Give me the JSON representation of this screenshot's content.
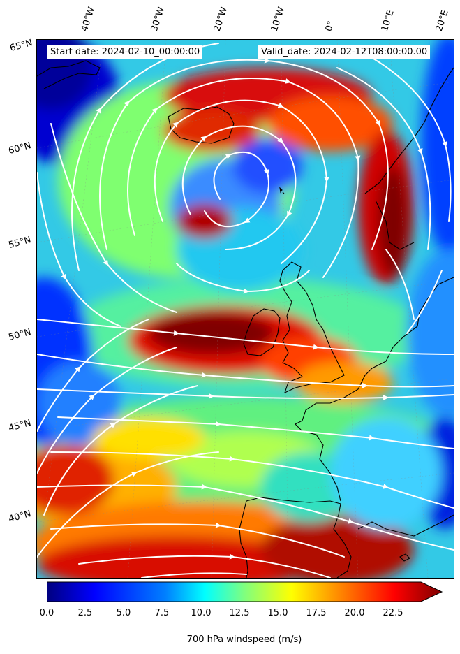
{
  "header": {
    "start_date": "Start date: 2024-02-10_00:00:00",
    "valid_date": "Valid_date: 2024-02-12T08:00:00.00"
  },
  "lon_labels": [
    "40°W",
    "30°W",
    "20°W",
    "10°W",
    "0°",
    "10°E",
    "20°E"
  ],
  "lat_labels": [
    "65°N",
    "60°N",
    "55°N",
    "50°N",
    "45°N",
    "40°N"
  ],
  "colorbar": {
    "label": "700 hPa windspeed (m/s)",
    "ticks": [
      "0.0",
      "2.5",
      "5.0",
      "7.5",
      "10.0",
      "12.5",
      "15.0",
      "17.5",
      "20.0",
      "22.5"
    ],
    "range": [
      0,
      25
    ],
    "extend": "max"
  },
  "colors": {
    "jet_stops": [
      "#00007f",
      "#0000ff",
      "#007fff",
      "#00ffff",
      "#7fff7f",
      "#ffff00",
      "#ff7f00",
      "#ff0000",
      "#7f0000"
    ],
    "streamline": "#ffffff",
    "coastline": "#000000"
  }
}
